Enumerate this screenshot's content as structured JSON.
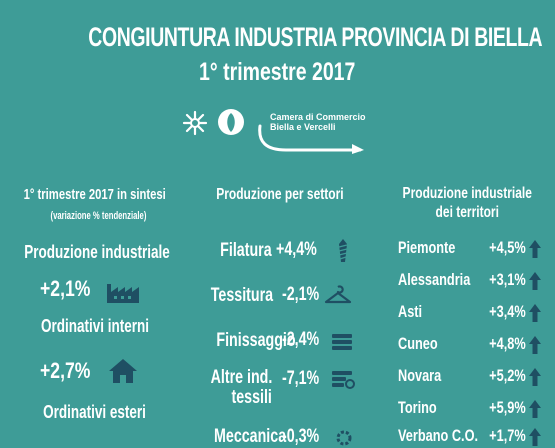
{
  "header": {
    "title": "CONGIUNTURA INDUSTRIA PROVINCIA DI BIELLA",
    "subtitle": "1° trimestre 2017",
    "logo_text_line1": "Camera di Commercio",
    "logo_text_line2": "Biella e Vercelli"
  },
  "summary": {
    "heading": "1° trimestre 2017 in sintesi",
    "note": "(variazione % tendenziale)",
    "items": [
      {
        "label": "Produzione industriale",
        "value": "+2,1%",
        "icon": "factory-icon"
      },
      {
        "label": "Ordinativi interni",
        "value": "+2,7%",
        "icon": "home-icon"
      },
      {
        "label": "Ordinativi esteri",
        "value": "",
        "icon": ""
      }
    ]
  },
  "sectors": {
    "heading": "Produzione per settori",
    "items": [
      {
        "label": "Filatura",
        "value": "+4,4%",
        "icon": "yarn-icon"
      },
      {
        "label": "Tessitura",
        "value": "-2,1%",
        "icon": "hanger-icon"
      },
      {
        "label": "Finissaggio",
        "value": "-2,4%",
        "icon": "fabric-rolls-icon"
      },
      {
        "label": "Altre ind. tessili",
        "label_line1": "Altre ind.",
        "label_line2": "tessili",
        "value": "-7,1%",
        "icon": "textile-machine-icon"
      },
      {
        "label": "Meccanica",
        "value": "-0,3%",
        "icon": "gear-icon"
      }
    ]
  },
  "territories": {
    "heading_line1": "Produzione industriale",
    "heading_line2": "dei territori",
    "items": [
      {
        "label": "Piemonte",
        "value": "+4,5%"
      },
      {
        "label": "Alessandria",
        "value": "+3,1%"
      },
      {
        "label": "Asti",
        "value": "+3,4%"
      },
      {
        "label": "Cuneo",
        "value": "+4,8%"
      },
      {
        "label": "Novara",
        "value": "+5,2%"
      },
      {
        "label": "Torino",
        "value": "+5,9%"
      },
      {
        "label": "Verbano C.O.",
        "value": "+1,7%"
      }
    ]
  },
  "colors": {
    "background": "#3e9c97",
    "text": "#ffffff",
    "icon": "#1f4f63"
  }
}
